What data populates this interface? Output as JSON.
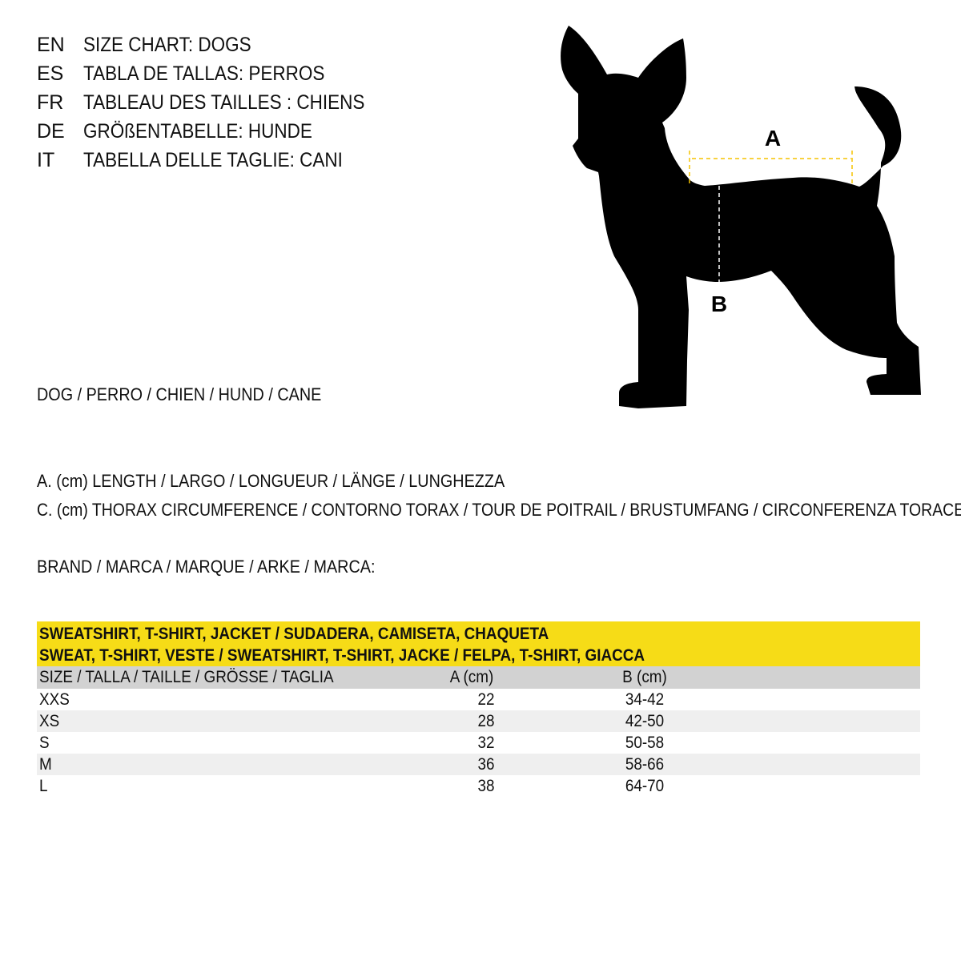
{
  "titles": [
    {
      "lang": "EN",
      "text": "SIZE CHART: DOGS"
    },
    {
      "lang": "ES",
      "text": "TABLA DE TALLAS: PERROS"
    },
    {
      "lang": "FR",
      "text": "TABLEAU DES TAILLES : CHIENS"
    },
    {
      "lang": "DE",
      "text": "GRÖßENTABELLE: HUNDE"
    },
    {
      "lang": "IT",
      "text": "TABELLA DELLE TAGLIE: CANI"
    }
  ],
  "animal_label": "DOG / PERRO / CHIEN / HUND / CANE",
  "legend": {
    "a": "A. (cm) LENGTH / LARGO / LONGUEUR / LÄNGE / LUNGHEZZA",
    "c": "C. (cm) THORAX CIRCUMFERENCE / CONTORNO TORAX / TOUR DE POITRAIL / BRUSTUMFANG / CIRCONFERENZA TORACE"
  },
  "brand_label": "BRAND / MARCA / MARQUE / ARKE / MARCA:",
  "diagram": {
    "label_a": "A",
    "label_b": "B",
    "measure_color": "#f6c400"
  },
  "table": {
    "header_line1": "SWEATSHIRT, T-SHIRT, JACKET / SUDADERA, CAMISETA, CHAQUETA",
    "header_line2": "SWEAT, T-SHIRT, VESTE / SWEATSHIRT, T-SHIRT, JACKE / FELPA, T-SHIRT, GIACCA",
    "header_color": "#f6dc17",
    "columns": [
      "SIZE / TALLA / TAILLE / GRÖSSE / TAGLIA",
      "A (cm)",
      "B (cm)"
    ],
    "rows": [
      [
        "XXS",
        "22",
        "34-42"
      ],
      [
        "XS",
        "28",
        "42-50"
      ],
      [
        "S",
        "32",
        "50-58"
      ],
      [
        "M",
        "36",
        "58-66"
      ],
      [
        "L",
        "38",
        "64-70"
      ]
    ]
  }
}
